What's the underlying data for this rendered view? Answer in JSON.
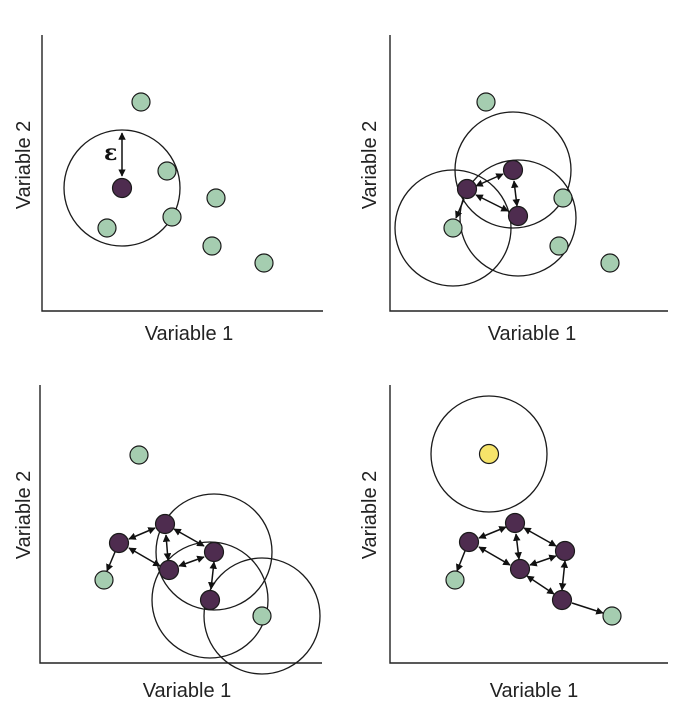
{
  "labels": {
    "xlabel": "Variable 1",
    "ylabel": "Variable 2",
    "epsilon": "ε"
  },
  "colors": {
    "noise": "#a5cdb0",
    "core": "#4e2c4f",
    "outlier": "#f6e46a",
    "line": "#1a1a1a"
  }
}
